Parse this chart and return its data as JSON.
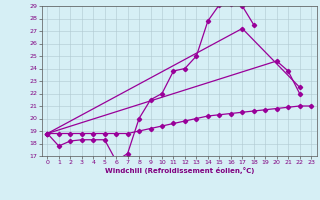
{
  "xlabel": "Windchill (Refroidissement éolien,°C)",
  "background_color": "#d6eff5",
  "grid_color": "#b0c8d0",
  "line_color": "#990099",
  "xlim": [
    -0.5,
    23.5
  ],
  "ylim": [
    17,
    29
  ],
  "xticks": [
    0,
    1,
    2,
    3,
    4,
    5,
    6,
    7,
    8,
    9,
    10,
    11,
    12,
    13,
    14,
    15,
    16,
    17,
    18,
    19,
    20,
    21,
    22,
    23
  ],
  "yticks": [
    17,
    18,
    19,
    20,
    21,
    22,
    23,
    24,
    25,
    26,
    27,
    28,
    29
  ],
  "curve1_x": [
    0,
    1,
    2,
    3,
    4,
    5,
    6,
    7,
    8,
    9,
    10,
    11,
    12,
    13,
    14,
    15,
    16,
    17,
    18
  ],
  "curve1_y": [
    18.8,
    17.8,
    18.2,
    18.3,
    18.3,
    18.3,
    16.6,
    17.2,
    20.0,
    21.5,
    22.0,
    23.8,
    24.0,
    25.0,
    27.8,
    29.1,
    29.2,
    29.0,
    27.5
  ],
  "curve2_x": [
    0,
    17,
    22
  ],
  "curve2_y": [
    18.8,
    27.2,
    22.5
  ],
  "curve3_x": [
    0,
    20,
    21,
    22
  ],
  "curve3_y": [
    18.8,
    24.6,
    23.8,
    22.0
  ],
  "curve4_x": [
    0,
    1,
    2,
    3,
    4,
    5,
    6,
    7,
    8,
    9,
    10,
    11,
    12,
    13,
    14,
    15,
    16,
    17,
    18,
    19,
    20,
    21,
    22,
    23
  ],
  "curve4_y": [
    18.8,
    18.8,
    18.8,
    18.8,
    18.8,
    18.8,
    18.8,
    18.8,
    19.0,
    19.2,
    19.4,
    19.6,
    19.8,
    20.0,
    20.2,
    20.3,
    20.4,
    20.5,
    20.6,
    20.7,
    20.8,
    20.9,
    21.0,
    21.0
  ]
}
